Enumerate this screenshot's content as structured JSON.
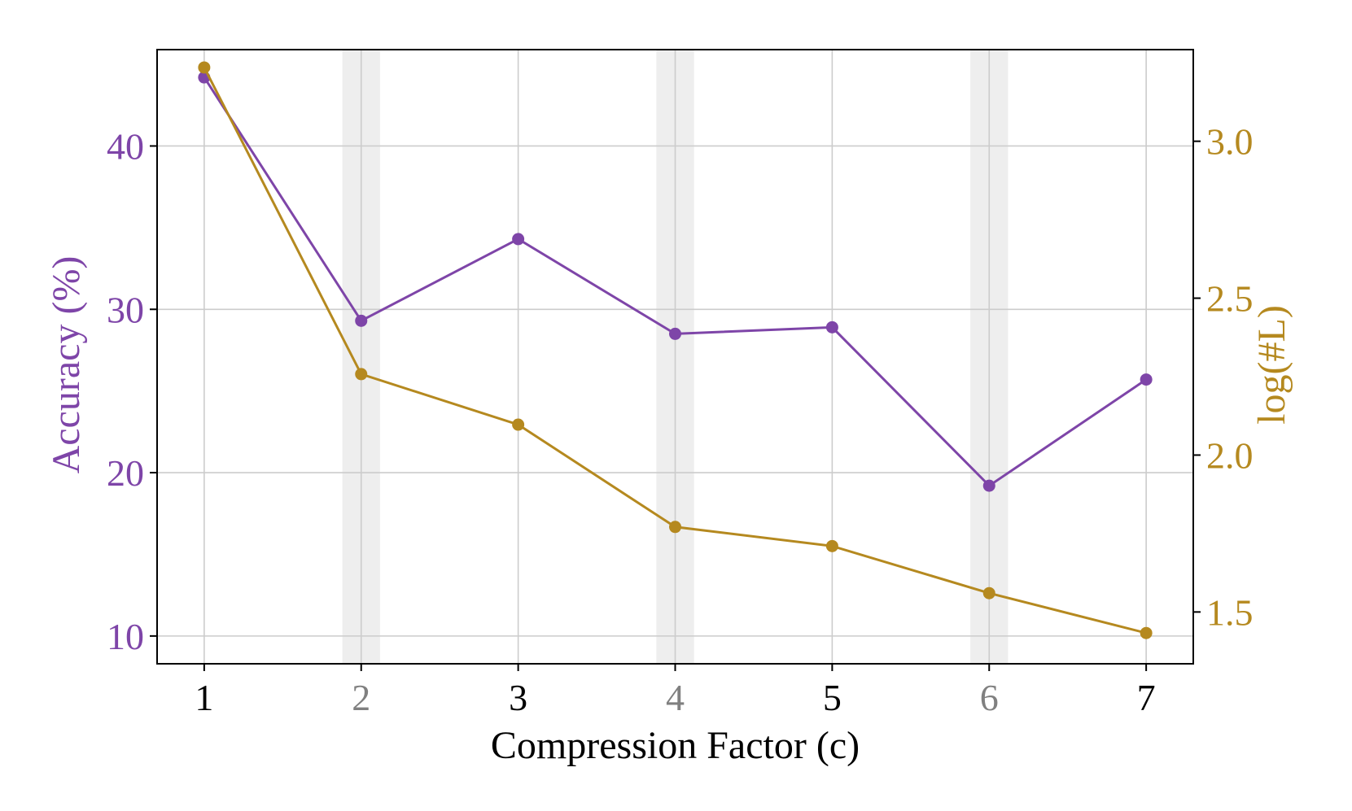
{
  "chart_data": {
    "type": "line",
    "xlabel": "Compression Factor (c)",
    "ylabel": "Accuracy (%)",
    "y2label": "log(#L)",
    "x": [
      1,
      2,
      3,
      4,
      5,
      6,
      7
    ],
    "xtick_labels": [
      "1",
      "2",
      "3",
      "4",
      "5",
      "6",
      "7"
    ],
    "highlighted_x": [
      2,
      4,
      6
    ],
    "ylim": [
      8.3,
      45.9
    ],
    "y2lim": [
      1.335,
      3.292
    ],
    "yticks": [
      "10",
      "20",
      "30",
      "40"
    ],
    "y2ticks": [
      "1.5",
      "2.0",
      "2.5",
      "3.0"
    ],
    "grid": true,
    "series": [
      {
        "axis": "left",
        "color": "#7e45a8",
        "values": [
          44.2,
          29.3,
          34.3,
          28.5,
          28.9,
          19.2,
          25.7
        ]
      },
      {
        "axis": "right",
        "color": "#b5891f",
        "values": [
          3.235,
          2.258,
          2.097,
          1.771,
          1.71,
          1.56,
          1.433
        ]
      }
    ],
    "colors": {
      "left_axis": "#7e45a8",
      "right_axis": "#b5891f",
      "highlight_band": "#eeeeee",
      "highlight_tick": "#808080",
      "grid": "#cccccc"
    }
  }
}
